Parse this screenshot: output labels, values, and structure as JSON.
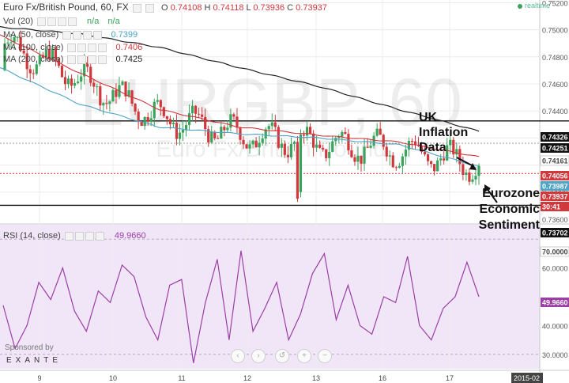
{
  "header": {
    "symbol_title": "Euro Fx/British Pound, 60, FX",
    "ohlc": [
      {
        "key": "O",
        "value": "0.74108"
      },
      {
        "key": "H",
        "value": "0.74118"
      },
      {
        "key": "L",
        "value": "0.73936"
      },
      {
        "key": "C",
        "value": "0.73937"
      }
    ],
    "realtime_label": "realtime"
  },
  "indicators": [
    {
      "label": "Vol (20)",
      "value1": "n/a",
      "value2": "n/a",
      "color": "#3aa35c"
    },
    {
      "label": "MA (50, close)",
      "value": "0.7399",
      "color": "#4ea3c6"
    },
    {
      "label": "MA (100, close)",
      "value": "0.7406",
      "color": "#d0383c"
    },
    {
      "label": "MA (200, close)",
      "value": "0.7425",
      "color": "#222222"
    }
  ],
  "watermark": {
    "symbol": "EURGBP, 60",
    "name": "Euro Fx/British Pound"
  },
  "price_axis": {
    "ticks": [
      "0.75200",
      "0.75000",
      "0.74800",
      "0.74600",
      "0.74400",
      "0.73800",
      "0.73600"
    ],
    "badges": [
      {
        "text": "0.74326",
        "bg": "#111111",
        "fg": "#ffffff"
      },
      {
        "text": "0.74251",
        "bg": "#111111",
        "fg": "#ffffff"
      },
      {
        "text": "0.74161",
        "bg": "#ffffff",
        "fg": "#444444"
      },
      {
        "text": "0.74056",
        "bg": "#d0383c",
        "fg": "#ffffff"
      },
      {
        "text": "0.73987",
        "bg": "#4ea3c6",
        "fg": "#ffffff"
      },
      {
        "text": "0.73937",
        "bg": "#d0383c",
        "fg": "#ffffff"
      },
      {
        "text": "30:41",
        "bg": "#d0383c",
        "fg": "#ffffff"
      },
      {
        "text": "0.73702",
        "bg": "#111111",
        "fg": "#ffffff"
      },
      {
        "text": "70.0000",
        "bg": "#ffffff",
        "fg": "#444444"
      }
    ]
  },
  "annotations": [
    {
      "text": "UK Inflation Data"
    },
    {
      "text": "Eurozone Economic Sentiment"
    }
  ],
  "rsi": {
    "label": "RSI (14, close)",
    "value": "49.9660",
    "ticks": [
      "60.0000",
      "40.0000",
      "30.0000"
    ],
    "badge": "49.9660"
  },
  "time_axis": {
    "labels": [
      "9",
      "10",
      "11",
      "12",
      "13",
      "16",
      "17",
      "2015-02"
    ]
  },
  "sponsor": {
    "label": "Sponsored by",
    "brand": "EXANTE"
  },
  "nav_buttons": [
    "‹",
    "›",
    "↺",
    "+",
    "−"
  ],
  "colors": {
    "bull": "#3aa35c",
    "bear": "#d0383c",
    "ma50": "#4ea3c6",
    "ma100": "#d0383c",
    "ma200": "#222222",
    "rsi_line": "#9b3ea6",
    "rsi_bg": "#f1e6f8",
    "level": "#111111"
  },
  "chart_data": {
    "type": "line",
    "title": "Euro Fx/British Pound, 60, FX",
    "x": [
      "9",
      "10",
      "11",
      "12",
      "13",
      "16",
      "17"
    ],
    "ylim": [
      0.7357,
      0.7522
    ],
    "series": [
      {
        "name": "MA (50, close)",
        "values": [
          0.7472,
          0.7445,
          0.7428,
          0.7423,
          0.742,
          0.7415,
          0.7399
        ]
      },
      {
        "name": "MA (100, close)",
        "values": [
          0.7496,
          0.7468,
          0.7441,
          0.7428,
          0.7422,
          0.7417,
          0.7406
        ]
      },
      {
        "name": "MA (200, close)",
        "values": [
          0.7502,
          0.7497,
          0.7487,
          0.7472,
          0.7458,
          0.7441,
          0.7425
        ]
      }
    ],
    "levels": [
      0.74326,
      0.73702
    ],
    "rsi": {
      "name": "RSI (14, close)",
      "ylim": [
        25,
        75
      ],
      "values": [
        47,
        32,
        40,
        55,
        49,
        60,
        45,
        38,
        52,
        48,
        61,
        57,
        43,
        35,
        54,
        56,
        27,
        48,
        63,
        35,
        66,
        38,
        46,
        55,
        35,
        44,
        58,
        65,
        42,
        54,
        40,
        37,
        50,
        48,
        64,
        40,
        35,
        46,
        50,
        62,
        50
      ]
    }
  }
}
